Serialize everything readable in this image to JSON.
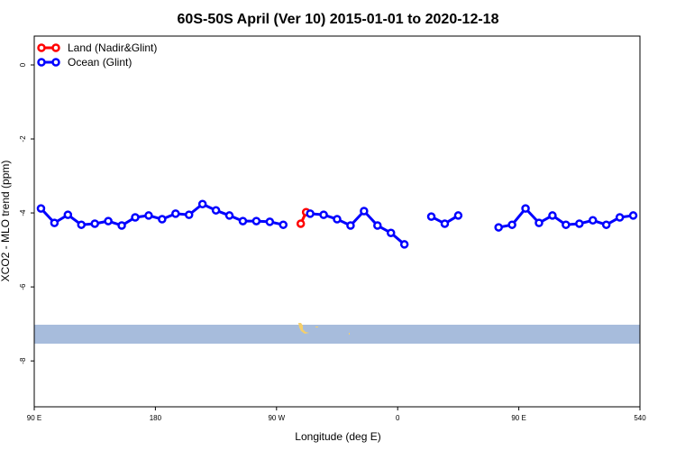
{
  "chart_data": {
    "type": "line",
    "title": "60S-50S April (Ver 10)   2015-01-01 to 2020-12-18",
    "x_label": "Longitude (deg E)",
    "y_label": "XCO2 - MLO trend (ppm)",
    "legend_position": "top-left",
    "xlim": [
      90,
      540
    ],
    "xticks": [
      {
        "value": 90,
        "label": "90 E"
      },
      180,
      {
        "value": 270,
        "label": "90 W"
      },
      {
        "value": 360,
        "label": "0"
      },
      {
        "value": 450,
        "label": "90 E"
      },
      540
    ],
    "ylim": [
      -9.24,
      0.78
    ],
    "yticks": [
      0,
      -2,
      -4,
      -6,
      -8
    ],
    "series": [
      {
        "name": "Land (Nadir&Glint)",
        "color": "#ff0000",
        "x": [
          288,
          292
        ],
        "values": [
          -4.29,
          -3.98
        ]
      },
      {
        "name": "Ocean (Glint)",
        "color": "#0000ff",
        "x": [
          95,
          105,
          115,
          125,
          135,
          145,
          155,
          165,
          175,
          185,
          195,
          205,
          215,
          225,
          235,
          245,
          255,
          265,
          275,
          285,
          295,
          305,
          315,
          325,
          335,
          345,
          355,
          365,
          375,
          385,
          395,
          405,
          415,
          425,
          435,
          445,
          455,
          465,
          475,
          485,
          495,
          505,
          515,
          525,
          535
        ],
        "values": [
          -3.88,
          -4.27,
          -4.05,
          -4.32,
          -4.29,
          -4.22,
          -4.34,
          -4.12,
          -4.07,
          -4.17,
          -4.02,
          -4.05,
          -3.76,
          -3.93,
          -4.07,
          -4.22,
          -4.22,
          -4.24,
          -4.32,
          null,
          -4.02,
          -4.05,
          -4.17,
          -4.34,
          -3.95,
          -4.34,
          -4.54,
          -4.85,
          null,
          -4.1,
          -4.29,
          -4.07,
          null,
          null,
          -4.39,
          -4.32,
          -3.88,
          -4.27,
          -4.07,
          -4.32,
          -4.29,
          -4.2,
          -4.32,
          -4.12,
          -4.07
        ]
      }
    ]
  }
}
